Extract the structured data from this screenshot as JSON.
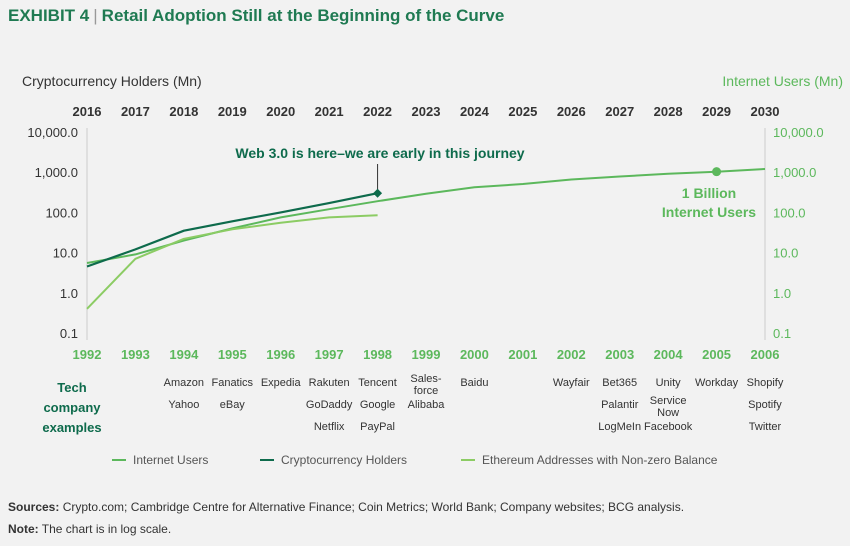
{
  "header": {
    "exhibit_label": "EXHIBIT 4",
    "separator": "|",
    "title": "Retail Adoption Still at the Beginning of the Curve"
  },
  "colors": {
    "internet_users": "#5cb85c",
    "crypto_holders": "#0e6b4c",
    "ethereum": "#8ccc64",
    "title_green": "#1f7a52",
    "internet_axis": "#5cb85c",
    "axis_line": "#cccccc",
    "background": "#f2f2f2"
  },
  "chart_data": {
    "type": "line",
    "scale": "log",
    "left_axis_title": "Cryptocurrency Holders (Mn)",
    "right_axis_title": "Internet Users (Mn)",
    "top_axis_ticks": [
      "2016",
      "2017",
      "2018",
      "2019",
      "2020",
      "2021",
      "2022",
      "2023",
      "2024",
      "2025",
      "2026",
      "2027",
      "2028",
      "2029",
      "2030"
    ],
    "bottom_axis_ticks": [
      "1992",
      "1993",
      "1994",
      "1995",
      "1996",
      "1997",
      "1998",
      "1999",
      "2000",
      "2001",
      "2002",
      "2003",
      "2004",
      "2005",
      "2006"
    ],
    "y_ticks": [
      "0.1",
      "1.0",
      "10.0",
      "100.0",
      "1,000.0",
      "10,000.0"
    ],
    "ylim": [
      0.1,
      10000
    ],
    "grid": false,
    "legend_position": "bottom",
    "series": [
      {
        "name": "Internet Users",
        "axis": "right",
        "x": [
          "1992",
          "1993",
          "1994",
          "1995",
          "1996",
          "1997",
          "1998",
          "1999",
          "2000",
          "2001",
          "2002",
          "2003",
          "2004",
          "2005",
          "2006"
        ],
        "values": [
          5.5,
          9,
          20,
          40,
          75,
          120,
          190,
          290,
          420,
          510,
          660,
          780,
          910,
          1030,
          1200
        ]
      },
      {
        "name": "Cryptocurrency Holders",
        "axis": "left",
        "x": [
          "2016",
          "2017",
          "2018",
          "2019",
          "2020",
          "2021",
          "2022"
        ],
        "values": [
          4.5,
          12,
          35,
          60,
          100,
          170,
          300
        ]
      },
      {
        "name": "Ethereum Addresses with Non-zero Balance",
        "axis": "left",
        "x": [
          "2016",
          "2017",
          "2018",
          "2019",
          "2020",
          "2021",
          "2022"
        ],
        "values": [
          0.4,
          7,
          22,
          38,
          55,
          75,
          85
        ]
      }
    ],
    "annotations": {
      "crypto_callout": "Web 3.0 is here–we are early in this journey",
      "billion_line1": "1 Billion",
      "billion_line2": "Internet Users",
      "billion_point": {
        "year": "2005",
        "value": 1030
      }
    }
  },
  "tech_companies": {
    "label_lines": [
      "Tech",
      "company",
      "examples"
    ],
    "columns": [
      {
        "year": "1994",
        "names": [
          "Amazon",
          "Yahoo"
        ]
      },
      {
        "year": "1995",
        "names": [
          "Fanatics",
          "eBay"
        ]
      },
      {
        "year": "1996",
        "names": [
          "Expedia"
        ]
      },
      {
        "year": "1997",
        "names": [
          "Rakuten",
          "GoDaddy",
          "Netflix"
        ]
      },
      {
        "year": "1998",
        "names": [
          "Tencent",
          "Google",
          "PayPal"
        ]
      },
      {
        "year": "1999",
        "names": [
          "Sales-force",
          "Alibaba"
        ]
      },
      {
        "year": "2000",
        "names": [
          "Baidu"
        ]
      },
      {
        "year": "2002",
        "names": [
          "Wayfair"
        ]
      },
      {
        "year": "2003",
        "names": [
          "Bet365",
          "Palantir",
          "LogMeIn"
        ]
      },
      {
        "year": "2004",
        "names": [
          "Unity",
          "Service Now",
          "Facebook"
        ]
      },
      {
        "year": "2005",
        "names": [
          "Workday"
        ]
      },
      {
        "year": "2006",
        "names": [
          "Shopify",
          "Spotify",
          "Twitter"
        ]
      }
    ]
  },
  "footer": {
    "sources_label": "Sources:",
    "sources_text": "Crypto.com; Cambridge Centre for Alternative Finance; Coin Metrics; World Bank; Company websites; BCG analysis.",
    "note_label": "Note:",
    "note_text": "The chart is in log scale."
  }
}
